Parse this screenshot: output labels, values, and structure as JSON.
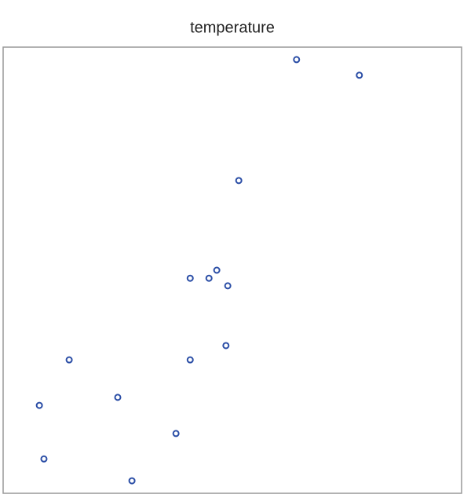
{
  "chart_data": {
    "type": "scatter",
    "title": "temperature",
    "color": "#2b4ea6",
    "x": [
      64.0,
      77.7,
      51.4,
      40.8,
      44.9,
      46.6,
      49.0,
      48.6,
      14.4,
      40.8,
      25.0,
      7.9,
      37.7,
      8.9,
      28.1
    ],
    "values": [
      97.2,
      93.7,
      70.1,
      48.2,
      48.2,
      50.0,
      46.5,
      33.1,
      29.9,
      29.9,
      21.5,
      19.7,
      13.4,
      7.7,
      2.8
    ],
    "xlim": [
      0,
      100
    ],
    "ylim": [
      0,
      100
    ]
  }
}
